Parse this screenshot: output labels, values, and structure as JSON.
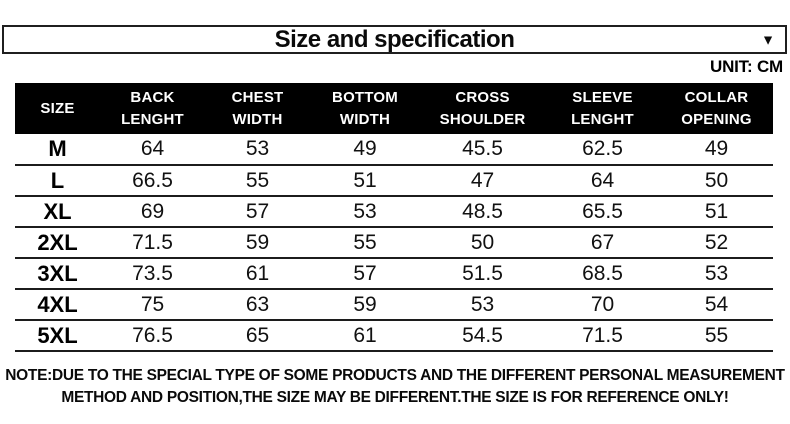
{
  "title_bar": {
    "title": "Size and specification",
    "dropdown_icon": "▼"
  },
  "unit_label": "UNIT: CM",
  "table": {
    "headers": [
      "SIZE",
      "BACK\nLENGHT",
      "CHEST\nWIDTH",
      "BOTTOM\nWIDTH",
      "CROSS\nSHOULDER",
      "SLEEVE\nLENGHT",
      "COLLAR\nOPENING"
    ],
    "rows": [
      {
        "size": "M",
        "values": [
          "64",
          "53",
          "49",
          "45.5",
          "62.5",
          "49"
        ]
      },
      {
        "size": "L",
        "values": [
          "66.5",
          "55",
          "51",
          "47",
          "64",
          "50"
        ]
      },
      {
        "size": "XL",
        "values": [
          "69",
          "57",
          "53",
          "48.5",
          "65.5",
          "51"
        ]
      },
      {
        "size": "2XL",
        "values": [
          "71.5",
          "59",
          "55",
          "50",
          "67",
          "52"
        ]
      },
      {
        "size": "3XL",
        "values": [
          "73.5",
          "61",
          "57",
          "51.5",
          "68.5",
          "53"
        ]
      },
      {
        "size": "4XL",
        "values": [
          "75",
          "63",
          "59",
          "53",
          "70",
          "54"
        ]
      },
      {
        "size": "5XL",
        "values": [
          "76.5",
          "65",
          "61",
          "54.5",
          "71.5",
          "55"
        ]
      }
    ]
  },
  "note": "NOTE:DUE TO THE SPECIAL TYPE OF SOME PRODUCTS AND THE DIFFERENT PERSONAL MEASUREMENT\nMETHOD AND POSITION,THE SIZE MAY BE DIFFERENT.THE SIZE IS FOR REFERENCE ONLY!",
  "colors": {
    "header_bg": "#000000",
    "header_text": "#ffffff",
    "border": "#1f1f1f"
  }
}
